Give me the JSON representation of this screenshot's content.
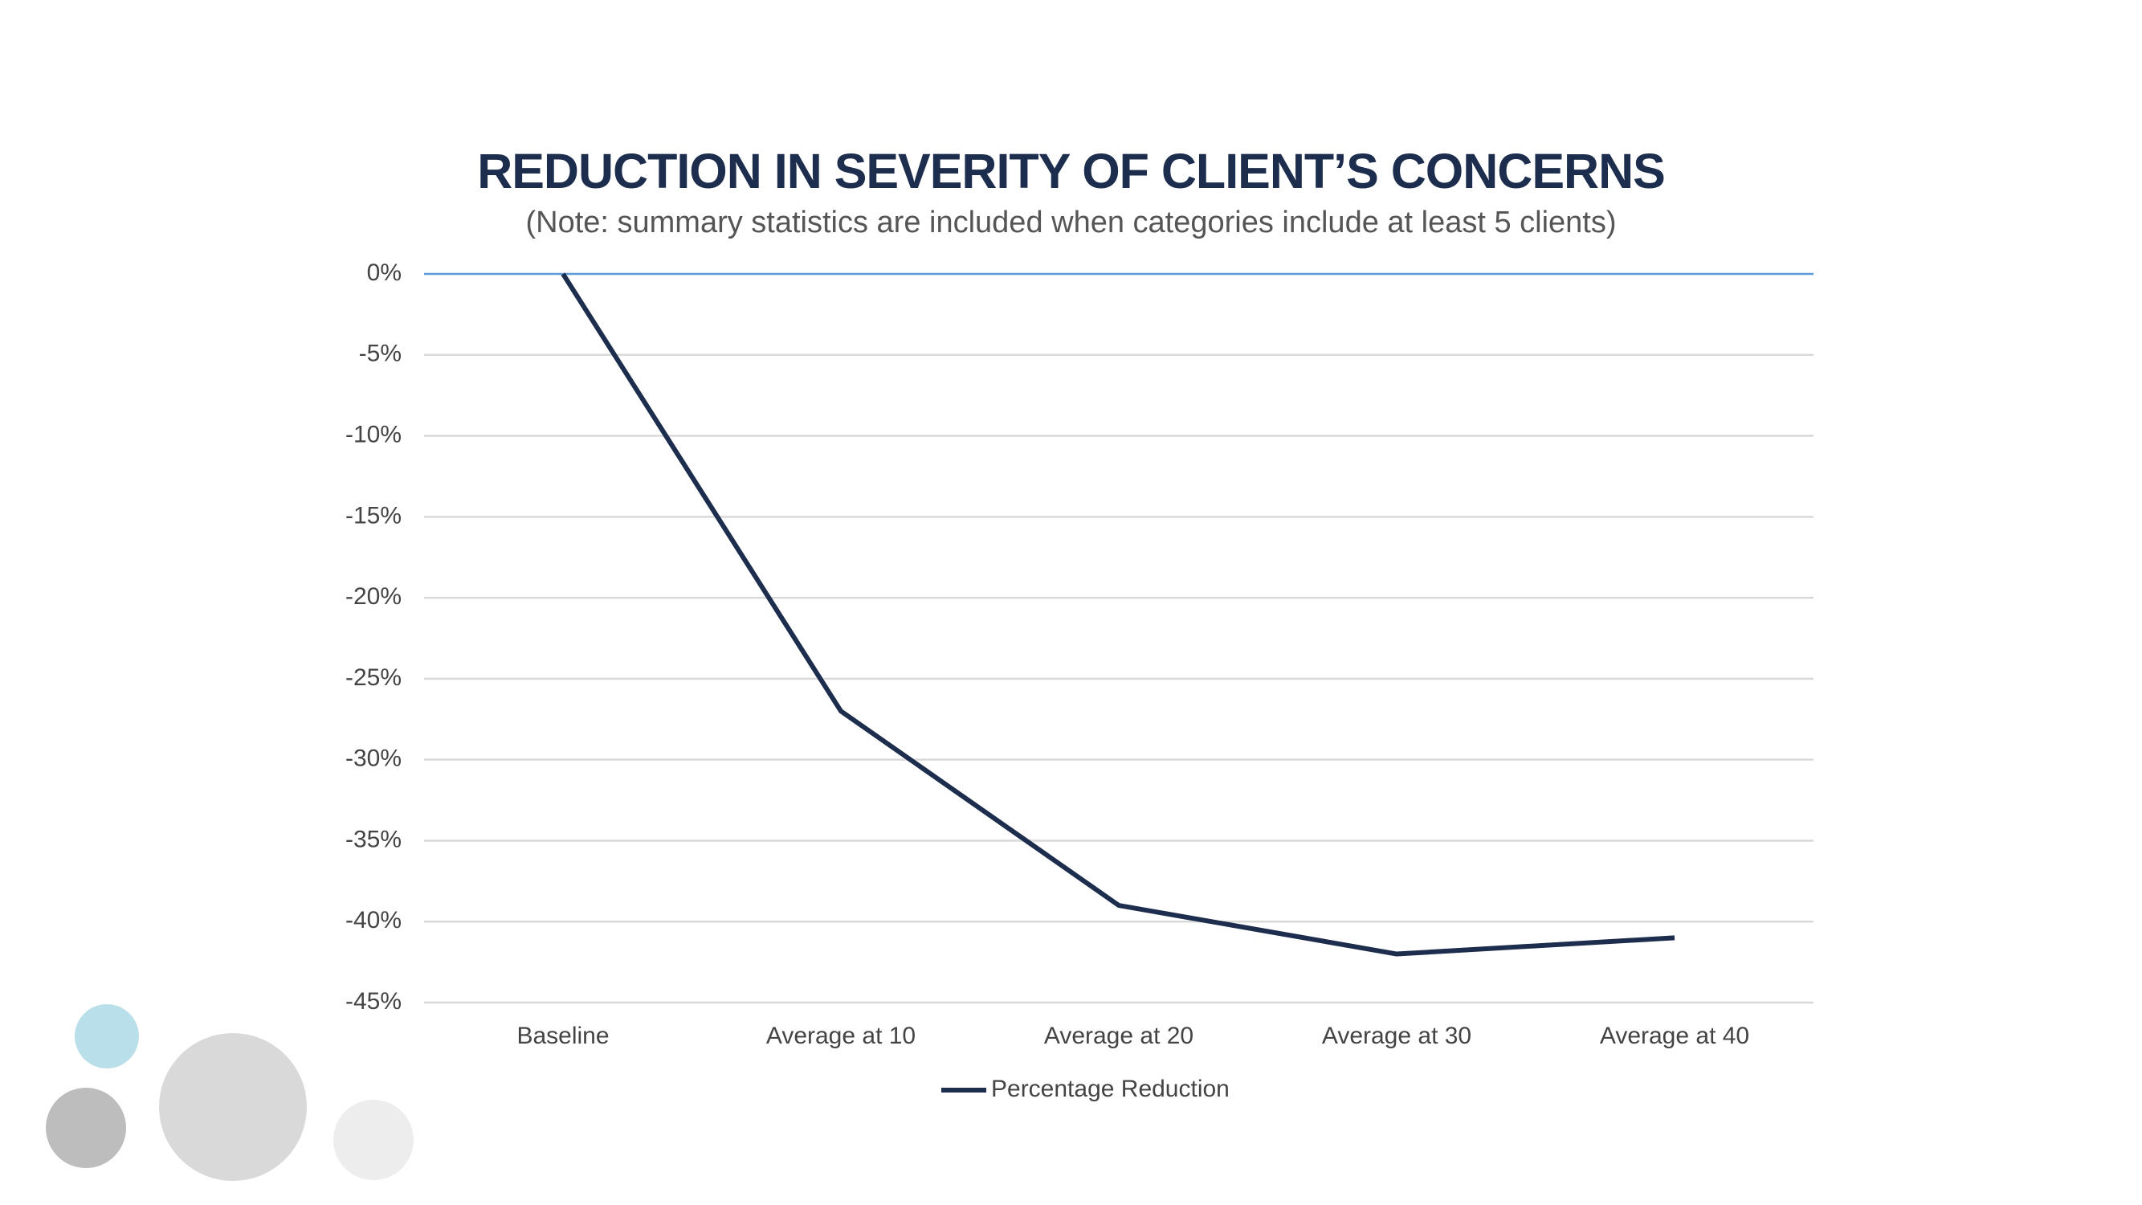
{
  "colors": {
    "title": "#1c2d4d",
    "series_line": "#1c2d4d",
    "zero_line": "#5b9bd5",
    "grid": "#d9d9d9",
    "circle_blue": "#b9e0ea",
    "circle_dark_gray": "#bdbdbd",
    "circle_mid_gray": "#d9d9d9",
    "circle_light_gray": "#ededed"
  },
  "decorations": [
    "circle-blue",
    "circle-dark-gray",
    "circle-large-gray",
    "circle-light-gray"
  ],
  "chart_data": {
    "type": "line",
    "title": "REDUCTION IN SEVERITY OF CLIENT’S CONCERNS",
    "subtitle": "(Note: summary statistics are included when categories include at least 5 clients)",
    "categories": [
      "Baseline",
      "Average at 10",
      "Average at 20",
      "Average at 30",
      "Average at 40"
    ],
    "series": [
      {
        "name": "Percentage Reduction",
        "values": [
          0,
          -27,
          -39,
          -42,
          -41
        ]
      }
    ],
    "ylim": [
      -45,
      0
    ],
    "ytick_step": 5,
    "ytick_format": "percent",
    "grid": true,
    "legend": "bottom-center",
    "xlabel": "",
    "ylabel": ""
  }
}
